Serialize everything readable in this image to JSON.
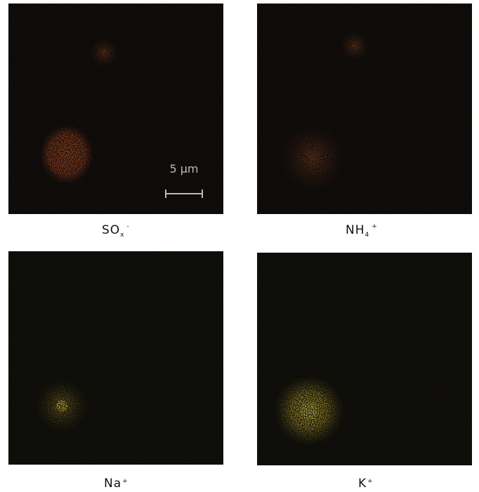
{
  "panels": [
    {
      "label": {
        "base": "SO",
        "sub": "x",
        "sup": "-"
      }
    },
    {
      "label": {
        "base": "NH",
        "sub": "4",
        "sup": "+"
      }
    },
    {
      "label": {
        "base": "Na",
        "sup": "+"
      }
    },
    {
      "label": {
        "base": "K",
        "sup": "+"
      }
    }
  ],
  "scale_bar": {
    "label": "5 μm"
  }
}
